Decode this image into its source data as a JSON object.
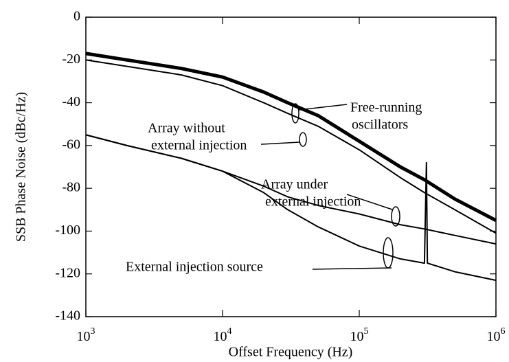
{
  "chart_data": {
    "type": "line",
    "x_label": "Offset Frequency (Hz)",
    "y_label": "SSB Phase Noise (dBc/Hz)",
    "log_x": true,
    "xlim": [
      1000,
      1000000
    ],
    "xticks": [
      {
        "value": 1000,
        "label": "10^3"
      },
      {
        "value": 10000,
        "label": "10^4"
      },
      {
        "value": 100000,
        "label": "10^5"
      },
      {
        "value": 1000000,
        "label": "10^6"
      }
    ],
    "ylim": [
      -140,
      0
    ],
    "yticks": [
      -140,
      -120,
      -100,
      -80,
      -60,
      -40,
      -20,
      0
    ],
    "annotations": [
      {
        "lines": [
          "Free-running",
          "oscillators"
        ]
      },
      {
        "lines": [
          "Array without",
          "external injection"
        ]
      },
      {
        "lines": [
          "Array under",
          "external injection"
        ]
      },
      {
        "lines": [
          "External  injection source"
        ]
      }
    ],
    "series": [
      {
        "name": "Free-running oscillators",
        "color": "#000000",
        "width": 5,
        "x": [
          1000,
          2000,
          5000,
          10000,
          20000,
          30000,
          50000,
          100000,
          200000,
          300000,
          500000,
          1000000
        ],
        "values": [
          -17,
          -20,
          -24,
          -28,
          -35,
          -40,
          -46,
          -58,
          -70,
          -76,
          -85,
          -95
        ]
      },
      {
        "name": "Array without external injection",
        "color": "#000000",
        "width": 2,
        "x": [
          1000,
          2000,
          5000,
          10000,
          20000,
          30000,
          50000,
          100000,
          200000,
          300000,
          500000,
          1000000
        ],
        "values": [
          -20,
          -23,
          -27,
          -32,
          -40,
          -45,
          -51,
          -62,
          -75,
          -82,
          -90,
          -101
        ]
      },
      {
        "name": "Array under external injection",
        "color": "#000000",
        "width": 2,
        "x": [
          1000,
          2000,
          5000,
          10000,
          20000,
          30000,
          50000,
          100000,
          200000,
          300000,
          500000,
          1000000
        ],
        "values": [
          -55,
          -60,
          -66,
          -72,
          -79,
          -84,
          -88,
          -92,
          -97,
          -99,
          -102,
          -106
        ]
      },
      {
        "name": "External injection source",
        "color": "#000000",
        "width": 2,
        "x": [
          1000,
          2000,
          5000,
          10000,
          20000,
          30000,
          50000,
          100000,
          200000,
          300000,
          310000,
          315000,
          500000,
          1000000
        ],
        "values": [
          -55,
          -60,
          -66,
          -72,
          -82,
          -90,
          -98,
          -107,
          -113,
          -115,
          -68,
          -115,
          -119,
          -123
        ]
      }
    ]
  }
}
